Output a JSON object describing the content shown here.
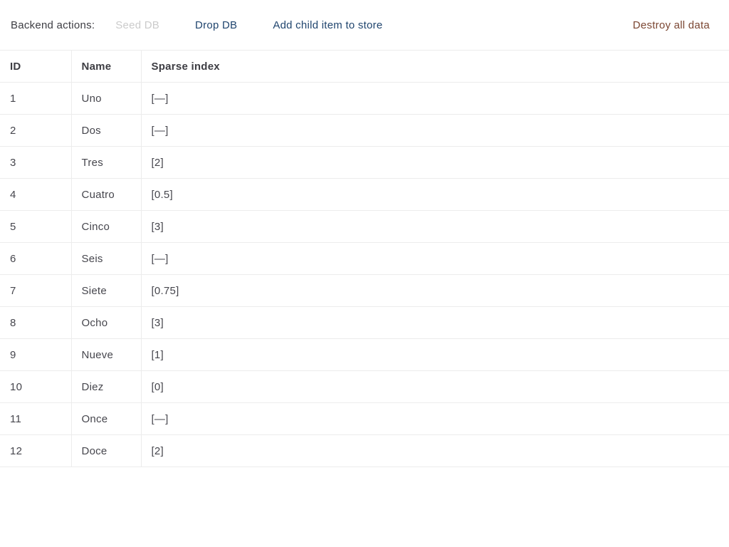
{
  "toolbar": {
    "label": "Backend actions:",
    "actions": [
      {
        "label": "Seed DB",
        "state": "disabled"
      },
      {
        "label": "Drop DB",
        "state": "enabled"
      },
      {
        "label": "Add child item to store",
        "state": "enabled"
      }
    ],
    "danger_action_label": "Destroy all data"
  },
  "table": {
    "columns": [
      "ID",
      "Name",
      "Sparse index"
    ],
    "rows": [
      {
        "id": "1",
        "name": "Uno",
        "sparse_index": "[—]"
      },
      {
        "id": "2",
        "name": "Dos",
        "sparse_index": "[—]"
      },
      {
        "id": "3",
        "name": "Tres",
        "sparse_index": "[2]"
      },
      {
        "id": "4",
        "name": "Cuatro",
        "sparse_index": "[0.5]"
      },
      {
        "id": "5",
        "name": "Cinco",
        "sparse_index": "[3]"
      },
      {
        "id": "6",
        "name": "Seis",
        "sparse_index": "[—]"
      },
      {
        "id": "7",
        "name": "Siete",
        "sparse_index": "[0.75]"
      },
      {
        "id": "8",
        "name": "Ocho",
        "sparse_index": "[3]"
      },
      {
        "id": "9",
        "name": "Nueve",
        "sparse_index": "[1]"
      },
      {
        "id": "10",
        "name": "Diez",
        "sparse_index": "[0]"
      },
      {
        "id": "11",
        "name": "Once",
        "sparse_index": "[—]"
      },
      {
        "id": "12",
        "name": "Doce",
        "sparse_index": "[2]"
      }
    ]
  },
  "colors": {
    "link": "#20456e",
    "link-disabled": "#cbcbcb",
    "danger": "#7b4632",
    "text": "#46464d",
    "heading": "#3d3d43",
    "border": "#ececec"
  }
}
